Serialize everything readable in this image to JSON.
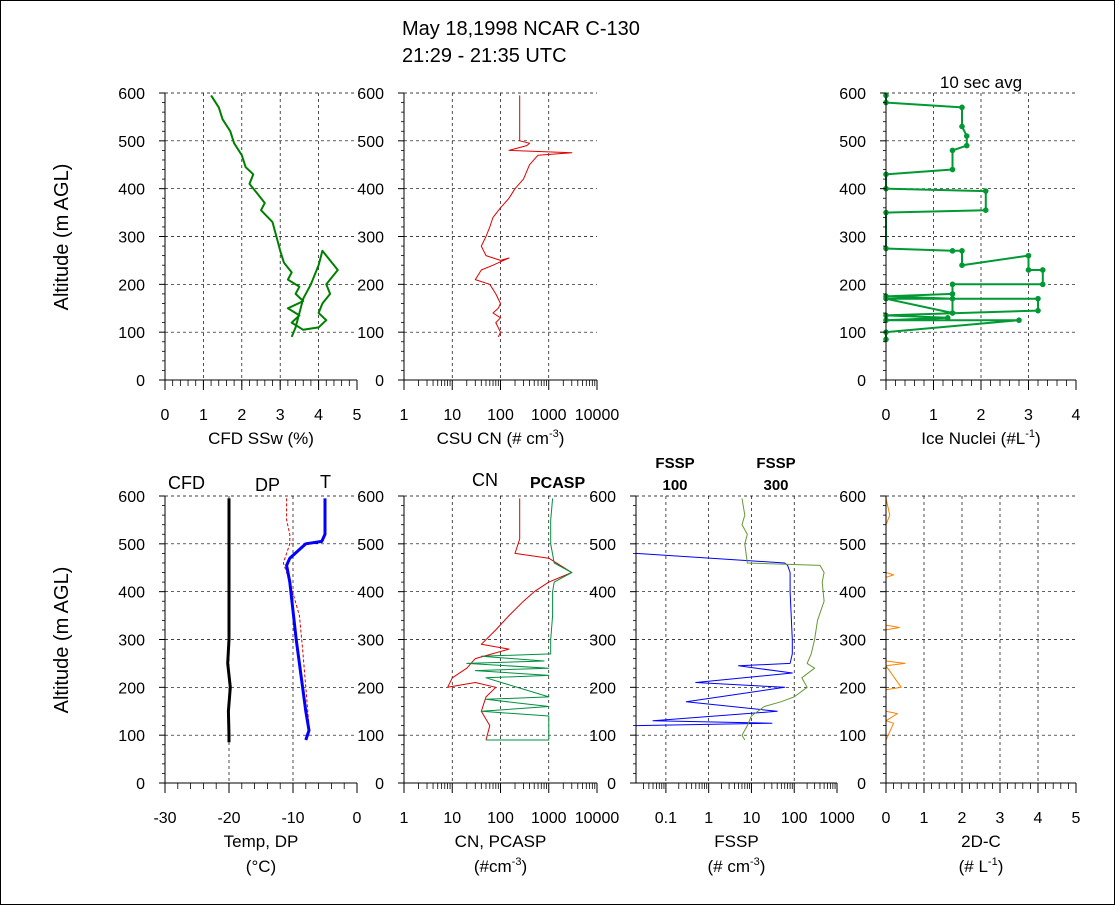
{
  "figure": {
    "title_line1": "May 18,1998 NCAR C-130",
    "title_line2": "21:29 - 21:35 UTC",
    "ylabel": "Altitude (m AGL)"
  },
  "colors": {
    "green": "#008000",
    "red": "#e00000",
    "blue": "#0000ff",
    "black": "#000000",
    "pcasp_green": "#009040",
    "fssp300_green": "#669933",
    "ice_green": "#009933",
    "orange": "#ff8000"
  },
  "chart_data": [
    {
      "id": "cfd-ssw",
      "type": "line",
      "xlabel": "CFD SSw (%)",
      "xscale": "linear",
      "xlim": [
        0,
        5
      ],
      "ylim": [
        0,
        600
      ],
      "xticks": [
        0,
        1,
        2,
        3,
        4,
        5
      ],
      "xticklabels": [
        "0",
        "1",
        "2",
        "3",
        "4",
        "5"
      ],
      "yticks": [
        0,
        100,
        200,
        300,
        400,
        500,
        600
      ],
      "yticklabels": [
        "0",
        "100",
        "200",
        "300",
        "400",
        "500",
        "600"
      ],
      "series": [
        {
          "name": "CFD SSw",
          "color": "#008000",
          "width": 2,
          "x": [
            1.2,
            1.4,
            1.5,
            1.7,
            1.8,
            2.0,
            2.1,
            2.3,
            2.2,
            2.4,
            2.6,
            2.5,
            2.8,
            2.9,
            3.0,
            3.1,
            3.3,
            3.2,
            3.5,
            3.4,
            3.6,
            3.2,
            3.5,
            3.3,
            3.6,
            4.0,
            4.2,
            4.0,
            4.1,
            4.3,
            4.2,
            4.5,
            4.1,
            4.0,
            3.8,
            3.6,
            3.5,
            3.4,
            3.3
          ],
          "y": [
            595,
            570,
            545,
            520,
            495,
            470,
            445,
            430,
            410,
            390,
            370,
            355,
            330,
            300,
            270,
            245,
            225,
            210,
            195,
            180,
            165,
            150,
            135,
            120,
            105,
            110,
            125,
            140,
            160,
            180,
            200,
            230,
            270,
            240,
            200,
            170,
            140,
            110,
            90
          ]
        }
      ]
    },
    {
      "id": "csu-cn",
      "type": "line",
      "xlabel": "CSU CN (# cm-3)",
      "xscale": "log",
      "xlim": [
        1,
        10000
      ],
      "ylim": [
        0,
        600
      ],
      "xticks": [
        1,
        10,
        100,
        1000,
        10000
      ],
      "xticklabels": [
        "1",
        "10",
        "100",
        "1000",
        "10000"
      ],
      "yticks": [
        0,
        100,
        200,
        300,
        400,
        500,
        600
      ],
      "yticklabels": [
        "0",
        "100",
        "200",
        "300",
        "400",
        "500",
        "600"
      ],
      "series": [
        {
          "name": "CSU CN",
          "color": "#e00000",
          "width": 1,
          "x": [
            250,
            250,
            400,
            350,
            150,
            3000,
            600,
            400,
            300,
            200,
            150,
            100,
            70,
            60,
            50,
            40,
            50,
            100,
            150,
            70,
            40,
            30,
            60,
            80,
            100,
            90,
            70,
            100,
            80,
            100,
            90
          ],
          "y": [
            595,
            500,
            495,
            490,
            480,
            475,
            470,
            450,
            420,
            400,
            380,
            360,
            340,
            320,
            300,
            280,
            260,
            250,
            255,
            240,
            230,
            210,
            200,
            180,
            160,
            150,
            140,
            130,
            120,
            100,
            90
          ]
        }
      ]
    },
    {
      "id": "ice-nuclei",
      "type": "line",
      "title": "10 sec avg",
      "xlabel": "Ice Nuclei (#L-1)",
      "xscale": "linear",
      "xlim": [
        0,
        4
      ],
      "ylim": [
        0,
        600
      ],
      "xticks": [
        0,
        1,
        2,
        3,
        4
      ],
      "xticklabels": [
        "0",
        "1",
        "2",
        "3",
        "4"
      ],
      "yticks": [
        0,
        100,
        200,
        300,
        400,
        500,
        600
      ],
      "yticklabels": [
        "0",
        "100",
        "200",
        "300",
        "400",
        "500",
        "600"
      ],
      "series": [
        {
          "name": "Ice Nuclei",
          "color": "#009933",
          "width": 2,
          "markers": true,
          "x": [
            0,
            0,
            1.6,
            1.6,
            1.7,
            1.7,
            1.4,
            1.4,
            0,
            0,
            2.1,
            2.1,
            0,
            0,
            1.4,
            1.6,
            1.6,
            3.0,
            3.0,
            3.3,
            3.3,
            1.4,
            1.4,
            0,
            1.4,
            1.4,
            0,
            3.2,
            3.2,
            0,
            1.3,
            0,
            2.8,
            0,
            0
          ],
          "y": [
            595,
            580,
            570,
            530,
            510,
            490,
            480,
            440,
            430,
            400,
            395,
            355,
            350,
            275,
            270,
            270,
            240,
            260,
            230,
            230,
            200,
            200,
            180,
            175,
            170,
            140,
            170,
            170,
            145,
            135,
            130,
            125,
            125,
            100,
            85
          ]
        }
      ]
    },
    {
      "id": "temp-dp",
      "type": "line",
      "xlabel": "Temp, DP",
      "xlabel2": "(°C)",
      "xscale": "linear",
      "xlim": [
        -30,
        0
      ],
      "ylim": [
        0,
        600
      ],
      "xticks": [
        -30,
        -20,
        -10,
        0
      ],
      "xticklabels": [
        "-30",
        "-20",
        "-10",
        "0"
      ],
      "yticks": [
        0,
        100,
        200,
        300,
        400,
        500,
        600
      ],
      "yticklabels": [
        "0",
        "100",
        "200",
        "300",
        "400",
        "500",
        "600"
      ],
      "legend": [
        "CFD",
        "DP",
        "T"
      ],
      "series": [
        {
          "name": "CFD",
          "color": "#000000",
          "width": 3,
          "x": [
            -20,
            -20,
            -20.2,
            -19.8,
            -20.1,
            -20,
            -20
          ],
          "y": [
            595,
            300,
            250,
            200,
            150,
            100,
            85
          ]
        },
        {
          "name": "DP",
          "color": "#e00000",
          "width": 1,
          "dash": true,
          "x": [
            -11,
            -11,
            -10.5,
            -10.5,
            -11,
            -11.5,
            -10.5,
            -9,
            -8.5,
            -8,
            -7.5
          ],
          "y": [
            595,
            550,
            520,
            500,
            480,
            460,
            420,
            350,
            280,
            200,
            120
          ]
        },
        {
          "name": "T",
          "color": "#0000ff",
          "width": 3,
          "x": [
            -5,
            -5,
            -5.5,
            -8,
            -10.5,
            -11,
            -10.5,
            -10,
            -9.5,
            -9,
            -8.5,
            -8,
            -7.5,
            -8
          ],
          "y": [
            595,
            520,
            505,
            500,
            470,
            455,
            420,
            360,
            300,
            250,
            200,
            150,
            110,
            90
          ]
        }
      ]
    },
    {
      "id": "cn-pcasp",
      "type": "line",
      "xlabel": "CN, PCASP",
      "xlabel2": "(#cm-3)",
      "xscale": "log",
      "xlim": [
        1,
        10000
      ],
      "ylim": [
        0,
        600
      ],
      "xticks": [
        1,
        10,
        100,
        1000,
        10000
      ],
      "xticklabels": [
        "1",
        "10",
        "100",
        "1000",
        "10000"
      ],
      "yticks": [
        0,
        100,
        200,
        300,
        400,
        500,
        600
      ],
      "yticklabels": [
        "0",
        "100",
        "200",
        "300",
        "400",
        "500",
        "600"
      ],
      "legend": [
        "CN",
        "PCASP"
      ],
      "series": [
        {
          "name": "CN",
          "color": "#e00000",
          "width": 1,
          "x": [
            250,
            250,
            200,
            1000,
            3000,
            1000,
            500,
            300,
            150,
            80,
            40,
            150,
            30,
            20,
            10,
            8,
            30,
            80,
            50,
            40,
            60,
            50
          ],
          "y": [
            595,
            510,
            480,
            470,
            440,
            420,
            400,
            380,
            350,
            320,
            290,
            280,
            260,
            240,
            220,
            200,
            210,
            200,
            180,
            150,
            120,
            90
          ]
        },
        {
          "name": "PCASP",
          "color": "#009040",
          "width": 1,
          "x": [
            1200,
            1100,
            1100,
            1300,
            3000,
            1300,
            1200,
            1200,
            1100,
            1100,
            40,
            800,
            20,
            1000,
            30,
            1000,
            50,
            1000,
            50,
            1000,
            40,
            1000,
            1000,
            1000,
            50
          ],
          "y": [
            595,
            550,
            500,
            460,
            440,
            420,
            400,
            350,
            300,
            270,
            265,
            255,
            250,
            240,
            235,
            225,
            220,
            180,
            175,
            160,
            150,
            140,
            100,
            90,
            90
          ]
        }
      ]
    },
    {
      "id": "fssp",
      "type": "line",
      "xlabel": "FSSP",
      "xlabel2": "(# cm-3)",
      "xscale": "log",
      "xlim": [
        0.02,
        1000
      ],
      "ylim": [
        0,
        600
      ],
      "xticks": [
        0.1,
        1,
        10,
        100,
        1000
      ],
      "xticklabels": [
        "0.1",
        "1",
        "10",
        "100",
        "1000"
      ],
      "yticks": [
        0,
        100,
        200,
        300,
        400,
        500,
        600
      ],
      "yticklabels": [
        "0",
        "100",
        "200",
        "300",
        "400",
        "500",
        "600"
      ],
      "legend": [
        "FSSP 100",
        "FSSP 300"
      ],
      "series": [
        {
          "name": "FSSP 100",
          "color": "#0000ff",
          "width": 1,
          "x": [
            0.02,
            60,
            70,
            80,
            80,
            90,
            90,
            80,
            5,
            90,
            0.5,
            60,
            0.3,
            40,
            0.05,
            30,
            0.02,
            0.02
          ],
          "y": [
            480,
            460,
            455,
            440,
            400,
            300,
            270,
            250,
            245,
            230,
            210,
            200,
            170,
            150,
            130,
            125,
            120,
            90
          ]
        },
        {
          "name": "FSSP 300",
          "color": "#669933",
          "width": 1,
          "x": [
            6,
            7,
            6,
            8,
            7,
            8,
            400,
            500,
            450,
            500,
            350,
            300,
            250,
            200,
            300,
            150,
            200,
            100,
            50,
            20,
            10,
            8,
            6,
            7
          ],
          "y": [
            595,
            560,
            540,
            520,
            500,
            460,
            455,
            440,
            420,
            380,
            340,
            300,
            270,
            250,
            240,
            220,
            200,
            180,
            170,
            160,
            140,
            120,
            100,
            90
          ]
        }
      ]
    },
    {
      "id": "twod-c",
      "type": "line",
      "xlabel": "2D-C",
      "xlabel2": "(# L-1)",
      "xscale": "linear",
      "xlim": [
        0,
        5
      ],
      "ylim": [
        0,
        600
      ],
      "xticks": [
        0,
        1,
        2,
        3,
        4,
        5
      ],
      "xticklabels": [
        "0",
        "1",
        "2",
        "3",
        "4",
        "5"
      ],
      "yticks": [
        0,
        100,
        200,
        300,
        400,
        500,
        600
      ],
      "yticklabels": [
        "0",
        "100",
        "200",
        "300",
        "400",
        "500",
        "600"
      ],
      "series": [
        {
          "name": "2D-C",
          "color": "#ff8000",
          "width": 1,
          "x": [
            0,
            0.1,
            0,
            0,
            0.2,
            0,
            0,
            0.35,
            0,
            0,
            0.5,
            0,
            0.4,
            0,
            0,
            0.3,
            0,
            0.2,
            0
          ],
          "y": [
            595,
            560,
            540,
            440,
            435,
            430,
            330,
            325,
            320,
            255,
            250,
            245,
            200,
            195,
            150,
            145,
            130,
            125,
            90
          ]
        }
      ]
    }
  ]
}
